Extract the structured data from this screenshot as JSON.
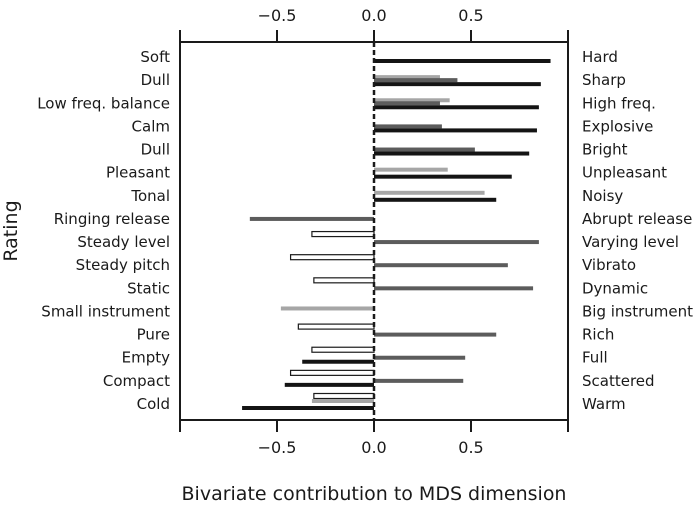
{
  "chart_data": {
    "type": "bar",
    "orientation": "horizontal",
    "title": "",
    "xlabel": "Bivariate contribution to MDS dimension",
    "ylabel": "Rating",
    "xlim": [
      -1,
      1
    ],
    "xticks": [
      -1,
      -0.5,
      0,
      0.5,
      1
    ],
    "xtick_labels": [
      "",
      "−0.5",
      "0.0",
      "0.5",
      ""
    ],
    "grid": false,
    "left_labels": [
      "Soft",
      "Dull",
      "Low freq. balance",
      "Calm",
      "Dull",
      "Pleasant",
      "Tonal",
      "Ringing release",
      "Steady level",
      "Steady pitch",
      "Static",
      "Small instrument",
      "Pure",
      "Empty",
      "Compact",
      "Cold"
    ],
    "right_labels": [
      "Hard",
      "Sharp",
      "High freq.",
      "Explosive",
      "Bright",
      "Unpleasant",
      "Noisy",
      "Abrupt release",
      "Varying level",
      "Vibrato",
      "Dynamic",
      "Big instrument",
      "Rich",
      "Full",
      "Scattered",
      "Warm"
    ],
    "series": [
      {
        "name": "white",
        "color": "#ffffff",
        "values": [
          null,
          null,
          null,
          null,
          null,
          null,
          null,
          null,
          -0.32,
          -0.43,
          -0.31,
          null,
          -0.39,
          -0.32,
          -0.43,
          -0.31
        ]
      },
      {
        "name": "light gray",
        "color": "#a6a6a6",
        "values": [
          null,
          0.34,
          0.39,
          null,
          null,
          0.38,
          0.57,
          null,
          null,
          null,
          null,
          -0.48,
          null,
          null,
          null,
          -0.32
        ]
      },
      {
        "name": "dark gray",
        "color": "#5c5c5c",
        "values": [
          null,
          0.43,
          0.34,
          0.35,
          0.52,
          null,
          null,
          -0.64,
          0.85,
          0.69,
          0.82,
          null,
          0.63,
          0.47,
          0.46,
          null
        ]
      },
      {
        "name": "black",
        "color": "#141414",
        "values": [
          0.91,
          0.86,
          0.85,
          0.84,
          0.8,
          0.71,
          0.63,
          null,
          null,
          null,
          null,
          null,
          null,
          -0.37,
          -0.46,
          -0.68
        ]
      }
    ]
  }
}
